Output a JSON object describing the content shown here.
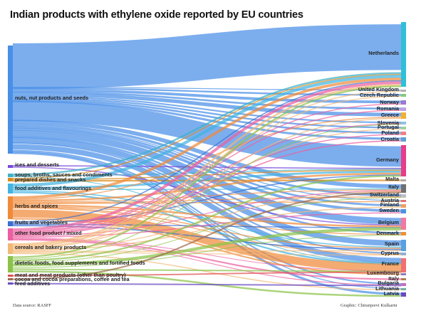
{
  "title": "Indian products with ethylene oxide reported by EU countries",
  "footer": {
    "source": "Data source: RASFF",
    "credit": "Graphic: Chiranjeevi Kulkarni"
  },
  "colors": {
    "nuts, nut products and seeds": "#4a8fe7",
    "ices and desserts": "#7a4ad8",
    "soups, broths, sauces and condiments": "#3fb0c9",
    "prepared dishes and snacks": "#d98a1a",
    "food additives and flavourings": "#42b4e0",
    "herbs and spices": "#f08a3a",
    "fruits and vegetables": "#3b6fd0",
    "other food product / mixed": "#ec5fa0",
    "cereals and bakery products": "#f2b877",
    "dietetic foods, food supplements and fortified foods": "#8bc34a",
    "meat and meat products (other than poultry)": "#e05050",
    "cocoa and cocoa preparations, coffee and tea": "#9c6b4b",
    "feed additives": "#6a4bc2"
  },
  "destination_colors": {
    "Netherlands": "#2fc0d8",
    "United Kingdom": "#b0b0b0",
    "Czech Republic": "#7fcc7a",
    "Norway": "#9a7ad0",
    "Romania": "#c0a0e0",
    "Greece": "#f0b030",
    "Slovenia": "#90c0e0",
    "Portugal": "#a0d0a0",
    "Poland": "#f08080",
    "Croatia": "#60a0d0",
    "Germany": "#e83d8a",
    "Malta": "#aaaaaa",
    "Italy": "#707070",
    "Switzerland": "#c0c0c0",
    "Austria": "#e07070",
    "Finland": "#f0a060",
    "Sweden": "#5090e0",
    "Belgium": "#f07aa0",
    "Denmark": "#f09030",
    "Spain": "#5aa0e0",
    "Cyprus": "#90b0d0",
    "France": "#f07070",
    "Luxembourg": "#8080c0",
    "Italy2": "#b08050",
    "Bulgaria": "#c070c0",
    "Lithuania": "#70b0a0",
    "Latvia": "#6a4bc2"
  },
  "chart_data": {
    "type": "sankey",
    "title": "Indian products with ethylene oxide reported by EU countries",
    "sources": [
      {
        "name": "nuts, nut products and seeds",
        "value": 150
      },
      {
        "name": "ices and desserts",
        "value": 2
      },
      {
        "name": "soups, broths, sauces and condiments",
        "value": 4
      },
      {
        "name": "prepared dishes and snacks",
        "value": 3
      },
      {
        "name": "food additives and flavourings",
        "value": 9
      },
      {
        "name": "herbs and spices",
        "value": 26
      },
      {
        "name": "fruits and vegetables",
        "value": 4
      },
      {
        "name": "other food product / mixed",
        "value": 13
      },
      {
        "name": "cereals and bakery products",
        "value": 11
      },
      {
        "name": "dietetic foods, food supplements and fortified foods",
        "value": 17
      },
      {
        "name": "meat and meat products (other than poultry)",
        "value": 1
      },
      {
        "name": "cocoa and cocoa preparations, coffee and tea",
        "value": 1
      },
      {
        "name": "feed additives",
        "value": 1
      }
    ],
    "destinations": [
      {
        "name": "Netherlands",
        "value": 70
      },
      {
        "name": "United Kingdom",
        "value": 2
      },
      {
        "name": "Czech Republic",
        "value": 3
      },
      {
        "name": "Norway",
        "value": 4
      },
      {
        "name": "Romania",
        "value": 3
      },
      {
        "name": "Greece",
        "value": 6
      },
      {
        "name": "Slovenia",
        "value": 3
      },
      {
        "name": "Portugal",
        "value": 3
      },
      {
        "name": "Poland",
        "value": 3
      },
      {
        "name": "Croatia",
        "value": 3
      },
      {
        "name": "Germany",
        "value": 32
      },
      {
        "name": "Malta",
        "value": 1
      },
      {
        "name": "Italy",
        "value": 8
      },
      {
        "name": "Switzerland",
        "value": 4
      },
      {
        "name": "Austria",
        "value": 2
      },
      {
        "name": "Finland",
        "value": 3
      },
      {
        "name": "Sweden",
        "value": 4
      },
      {
        "name": "Belgium",
        "value": 12
      },
      {
        "name": "Denmark",
        "value": 3
      },
      {
        "name": "Spain",
        "value": 9
      },
      {
        "name": "Cyprus",
        "value": 3
      },
      {
        "name": "France",
        "value": 14
      },
      {
        "name": "Luxembourg",
        "value": 1
      },
      {
        "name": "Italy",
        "value": 1
      },
      {
        "name": "Bulgaria",
        "value": 3
      },
      {
        "name": "Lithuania",
        "value": 2
      },
      {
        "name": "Latvia",
        "value": 3
      }
    ],
    "links": [
      {
        "source": 0,
        "target": 0,
        "value": 55
      },
      {
        "source": 0,
        "target": 1,
        "value": 1
      },
      {
        "source": 0,
        "target": 2,
        "value": 2
      },
      {
        "source": 0,
        "target": 3,
        "value": 3
      },
      {
        "source": 0,
        "target": 4,
        "value": 2
      },
      {
        "source": 0,
        "target": 5,
        "value": 4
      },
      {
        "source": 0,
        "target": 6,
        "value": 2
      },
      {
        "source": 0,
        "target": 7,
        "value": 2
      },
      {
        "source": 0,
        "target": 8,
        "value": 2
      },
      {
        "source": 0,
        "target": 9,
        "value": 2
      },
      {
        "source": 0,
        "target": 10,
        "value": 24
      },
      {
        "source": 0,
        "target": 12,
        "value": 5
      },
      {
        "source": 0,
        "target": 13,
        "value": 3
      },
      {
        "source": 0,
        "target": 14,
        "value": 1
      },
      {
        "source": 0,
        "target": 15,
        "value": 2
      },
      {
        "source": 0,
        "target": 16,
        "value": 3
      },
      {
        "source": 0,
        "target": 17,
        "value": 8
      },
      {
        "source": 0,
        "target": 18,
        "value": 2
      },
      {
        "source": 0,
        "target": 19,
        "value": 6
      },
      {
        "source": 0,
        "target": 20,
        "value": 2
      },
      {
        "source": 0,
        "target": 21,
        "value": 8
      },
      {
        "source": 0,
        "target": 24,
        "value": 2
      },
      {
        "source": 0,
        "target": 25,
        "value": 1
      },
      {
        "source": 0,
        "target": 26,
        "value": 2
      },
      {
        "source": 1,
        "target": 10,
        "value": 1
      },
      {
        "source": 1,
        "target": 17,
        "value": 1
      },
      {
        "source": 2,
        "target": 0,
        "value": 2
      },
      {
        "source": 2,
        "target": 10,
        "value": 1
      },
      {
        "source": 2,
        "target": 21,
        "value": 1
      },
      {
        "source": 3,
        "target": 0,
        "value": 1
      },
      {
        "source": 3,
        "target": 10,
        "value": 1
      },
      {
        "source": 3,
        "target": 11,
        "value": 1
      },
      {
        "source": 4,
        "target": 0,
        "value": 3
      },
      {
        "source": 4,
        "target": 10,
        "value": 2
      },
      {
        "source": 4,
        "target": 12,
        "value": 1
      },
      {
        "source": 4,
        "target": 19,
        "value": 1
      },
      {
        "source": 4,
        "target": 21,
        "value": 2
      },
      {
        "source": 5,
        "target": 0,
        "value": 3
      },
      {
        "source": 5,
        "target": 5,
        "value": 1
      },
      {
        "source": 5,
        "target": 10,
        "value": 2
      },
      {
        "source": 5,
        "target": 12,
        "value": 1
      },
      {
        "source": 5,
        "target": 13,
        "value": 1
      },
      {
        "source": 5,
        "target": 14,
        "value": 1
      },
      {
        "source": 5,
        "target": 17,
        "value": 2
      },
      {
        "source": 5,
        "target": 18,
        "value": 1
      },
      {
        "source": 5,
        "target": 19,
        "value": 1
      },
      {
        "source": 5,
        "target": 20,
        "value": 1
      },
      {
        "source": 5,
        "target": 21,
        "value": 11
      },
      {
        "source": 5,
        "target": 22,
        "value": 1
      },
      {
        "source": 6,
        "target": 0,
        "value": 1
      },
      {
        "source": 6,
        "target": 10,
        "value": 1
      },
      {
        "source": 6,
        "target": 17,
        "value": 1
      },
      {
        "source": 6,
        "target": 19,
        "value": 1
      },
      {
        "source": 7,
        "target": 0,
        "value": 3
      },
      {
        "source": 7,
        "target": 3,
        "value": 1
      },
      {
        "source": 7,
        "target": 4,
        "value": 1
      },
      {
        "source": 7,
        "target": 6,
        "value": 1
      },
      {
        "source": 7,
        "target": 8,
        "value": 1
      },
      {
        "source": 7,
        "target": 12,
        "value": 1
      },
      {
        "source": 7,
        "target": 16,
        "value": 1
      },
      {
        "source": 7,
        "target": 21,
        "value": 1
      },
      {
        "source": 7,
        "target": 23,
        "value": 1
      },
      {
        "source": 7,
        "target": 24,
        "value": 1
      },
      {
        "source": 7,
        "target": 9,
        "value": 1
      },
      {
        "source": 8,
        "target": 0,
        "value": 2
      },
      {
        "source": 8,
        "target": 1,
        "value": 1
      },
      {
        "source": 8,
        "target": 2,
        "value": 1
      },
      {
        "source": 8,
        "target": 5,
        "value": 1
      },
      {
        "source": 8,
        "target": 7,
        "value": 1
      },
      {
        "source": 8,
        "target": 12,
        "value": 1
      },
      {
        "source": 8,
        "target": 15,
        "value": 1
      },
      {
        "source": 8,
        "target": 19,
        "value": 1
      },
      {
        "source": 8,
        "target": 20,
        "value": 1
      },
      {
        "source": 8,
        "target": 25,
        "value": 1
      },
      {
        "source": 9,
        "target": 0,
        "value": 1
      },
      {
        "source": 9,
        "target": 6,
        "value": 0.5
      },
      {
        "source": 9,
        "target": 13,
        "value": 0.5
      },
      {
        "source": 9,
        "target": 17,
        "value": 2
      },
      {
        "source": 9,
        "target": 18,
        "value": 0.5
      },
      {
        "source": 9,
        "target": 21,
        "value": 1
      },
      {
        "source": 9,
        "target": 26,
        "value": 1
      },
      {
        "source": 9,
        "target": 10,
        "value": 1
      },
      {
        "source": 10,
        "target": 21,
        "value": 1
      },
      {
        "source": 11,
        "target": 12,
        "value": 1
      },
      {
        "source": 12,
        "target": 24,
        "value": 1
      }
    ]
  }
}
